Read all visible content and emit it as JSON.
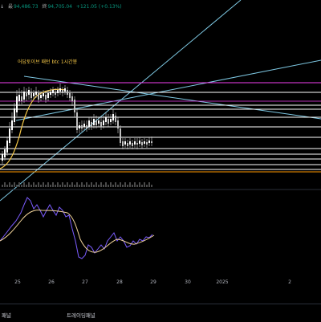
{
  "header": {
    "price_fragment": "↓",
    "low_label": "最",
    "low_value": "94,486.73",
    "close_label": "終",
    "close_value": "94,705.04",
    "change": "+121.05 (+0.13%)"
  },
  "annotation": "어답토이브 패턴 btc 1시간봉",
  "x_axis": {
    "ticks": [
      "25",
      "26",
      "27",
      "28",
      "29",
      "30",
      "2025",
      "2"
    ]
  },
  "bottom_tabs": [
    {
      "label": "패널"
    },
    {
      "label": "트레이딩패널"
    }
  ],
  "colors": {
    "background": "#000000",
    "candle_up": "#ffffff",
    "candle_down": "#e8e8e8",
    "resistance": "#f23ff0",
    "support_orange": "#ff9800",
    "trend_line": "#7ec8e3",
    "ma_curve": "#f7c948",
    "oscillator": "#7b5cff",
    "oscillator_signal": "#f2d49a",
    "up_text": "#089981"
  }
}
